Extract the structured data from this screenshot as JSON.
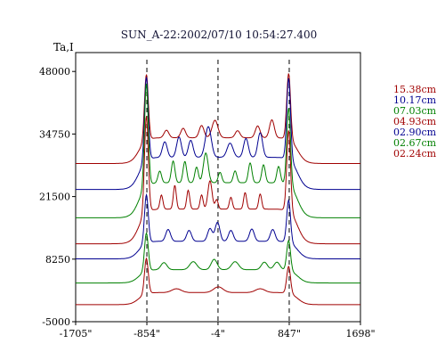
{
  "chart_data": {
    "type": "line",
    "title": "SUN_A-22:2002/07/10 10:54:27.400",
    "ylabel": "Ta,I",
    "xlabel": "",
    "xlim": [
      -1705,
      1698
    ],
    "ylim": [
      -5000,
      52000
    ],
    "x_ticks": [
      {
        "value": -1705,
        "label": "-1705\""
      },
      {
        "value": -854,
        "label": "-854\""
      },
      {
        "value": -4,
        "label": "-4\""
      },
      {
        "value": 847,
        "label": "847\""
      },
      {
        "value": 1698,
        "label": "1698\""
      }
    ],
    "y_ticks": [
      {
        "value": 48000,
        "label": "48000"
      },
      {
        "value": 34750,
        "label": "34750"
      },
      {
        "value": 21500,
        "label": "21500"
      },
      {
        "value": 8250,
        "label": "8250"
      },
      {
        "value": -5000,
        "label": "-5000"
      }
    ],
    "vlines": [
      -854,
      -4,
      847
    ],
    "legend_position": "right",
    "series": [
      {
        "name": "15.38cm",
        "color": "#a00000",
        "baseline": 28500,
        "peak_left": 48000,
        "peak_right": 48000,
        "bumps": [
          [
            -620,
            40,
            1600
          ],
          [
            -420,
            40,
            2000
          ],
          [
            -200,
            40,
            2600
          ],
          [
            -40,
            50,
            3700
          ],
          [
            230,
            40,
            1500
          ],
          [
            470,
            40,
            2500
          ],
          [
            640,
            40,
            3800
          ]
        ]
      },
      {
        "name": "10.17cm",
        "color": "#000090",
        "baseline": 23000,
        "peak_left": 47600,
        "peak_right": 47100,
        "bumps": [
          [
            -640,
            40,
            3300
          ],
          [
            -470,
            40,
            4300
          ],
          [
            -330,
            40,
            3600
          ],
          [
            -120,
            50,
            6500
          ],
          [
            140,
            50,
            3000
          ],
          [
            330,
            40,
            4000
          ],
          [
            500,
            40,
            5200
          ]
        ]
      },
      {
        "name": "07.03cm",
        "color": "#008000",
        "baseline": 17000,
        "peak_left": 46300,
        "peak_right": 40800,
        "bumps": [
          [
            -700,
            30,
            2500
          ],
          [
            -540,
            30,
            4600
          ],
          [
            -400,
            30,
            4500
          ],
          [
            -260,
            30,
            3300
          ],
          [
            -150,
            40,
            6300
          ],
          [
            20,
            30,
            2200
          ],
          [
            200,
            30,
            2500
          ],
          [
            380,
            30,
            4200
          ],
          [
            540,
            30,
            3800
          ],
          [
            720,
            30,
            3500
          ]
        ]
      },
      {
        "name": "04.93cm",
        "color": "#a00000",
        "baseline": 11500,
        "peak_left": 39400,
        "peak_right": 36100,
        "bumps": [
          [
            -680,
            25,
            3000
          ],
          [
            -520,
            25,
            5000
          ],
          [
            -360,
            25,
            4000
          ],
          [
            -200,
            25,
            3000
          ],
          [
            -100,
            35,
            6000
          ],
          [
            -20,
            25,
            2000
          ],
          [
            150,
            25,
            2500
          ],
          [
            320,
            25,
            3500
          ],
          [
            500,
            25,
            3200
          ]
        ]
      },
      {
        "name": "02.90cm",
        "color": "#000090",
        "baseline": 8300,
        "peak_left": 22300,
        "peak_right": 21000,
        "bumps": [
          [
            -600,
            40,
            2500
          ],
          [
            -350,
            40,
            2300
          ],
          [
            -100,
            40,
            2700
          ],
          [
            -10,
            40,
            4000
          ],
          [
            150,
            40,
            2300
          ],
          [
            400,
            40,
            2600
          ],
          [
            650,
            40,
            2500
          ]
        ]
      },
      {
        "name": "02.67cm",
        "color": "#008000",
        "baseline": 3200,
        "peak_left": 14100,
        "peak_right": 12400,
        "bumps": [
          [
            -650,
            50,
            1500
          ],
          [
            -300,
            60,
            1700
          ],
          [
            -50,
            50,
            2200
          ],
          [
            200,
            60,
            1700
          ],
          [
            550,
            50,
            1600
          ],
          [
            700,
            50,
            1600
          ]
        ]
      },
      {
        "name": "02.24cm",
        "color": "#a00000",
        "baseline": -1400,
        "peak_left": 8700,
        "peak_right": 6900,
        "bumps": [
          [
            -500,
            80,
            800
          ],
          [
            0,
            80,
            1200
          ],
          [
            500,
            80,
            800
          ]
        ]
      }
    ]
  }
}
